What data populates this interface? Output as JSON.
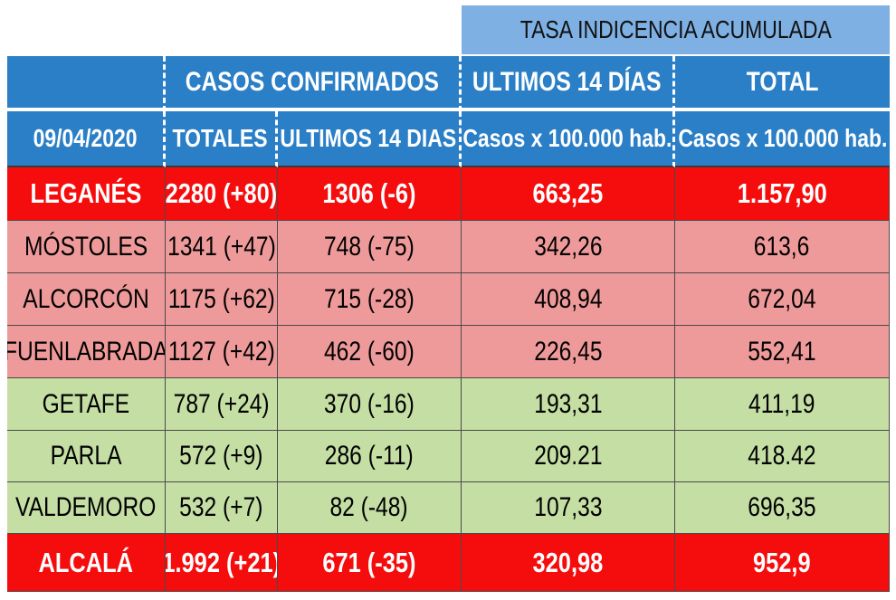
{
  "header": {
    "tasa_title": "TASA INDICENCIA  ACUMULADA",
    "casos_confirmados": "CASOS  CONFIRMADOS",
    "ultimos_14_dias_upper": "ULTIMOS 14 DÍAS",
    "total": "TOTAL",
    "date": "09/04/2020",
    "totales": "TOTALES",
    "ultimos_14_dias": "ULTIMOS 14 DIAS",
    "casos_per_100k_1": "Casos x 100.000 hab.",
    "casos_per_100k_2": "Casos x 100.000 hab."
  },
  "colors": {
    "header_blue": "#2a7fc7",
    "tasa_blue": "#7fb0e3",
    "red": "#f50d0d",
    "pink": "#ef9a9a",
    "green": "#c4dea4"
  },
  "rows": [
    {
      "city": "LEGANÉS",
      "totales": "2280 (+80)",
      "ultimos": "1306 (-6)",
      "tasa14": "663,25",
      "tasa_total": "1.157,90",
      "color": "red"
    },
    {
      "city": "MÓSTOLES",
      "totales": "1341 (+47)",
      "ultimos": "748 (-75)",
      "tasa14": "342,26",
      "tasa_total": "613,6",
      "color": "pink"
    },
    {
      "city": "ALCORCÓN",
      "totales": "1175 (+62)",
      "ultimos": "715 (-28)",
      "tasa14": "408,94",
      "tasa_total": "672,04",
      "color": "pink"
    },
    {
      "city": "FUENLABRADA",
      "totales": "1127 (+42)",
      "ultimos": "462 (-60)",
      "tasa14": "226,45",
      "tasa_total": "552,41",
      "color": "pink"
    },
    {
      "city": "GETAFE",
      "totales": "787 (+24)",
      "ultimos": "370 (-16)",
      "tasa14": "193,31",
      "tasa_total": "411,19",
      "color": "green"
    },
    {
      "city": "PARLA",
      "totales": "572 (+9)",
      "ultimos": "286 (-11)",
      "tasa14": "209.21",
      "tasa_total": "418.42",
      "color": "green"
    },
    {
      "city": "VALDEMORO",
      "totales": "532 (+7)",
      "ultimos": "82 (-48)",
      "tasa14": "107,33",
      "tasa_total": "696,35",
      "color": "green"
    },
    {
      "city": "ALCALÁ",
      "totales": "1.992 (+21)",
      "ultimos": "671 (-35)",
      "tasa14": "320,98",
      "tasa_total": "952,9",
      "color": "red"
    }
  ]
}
